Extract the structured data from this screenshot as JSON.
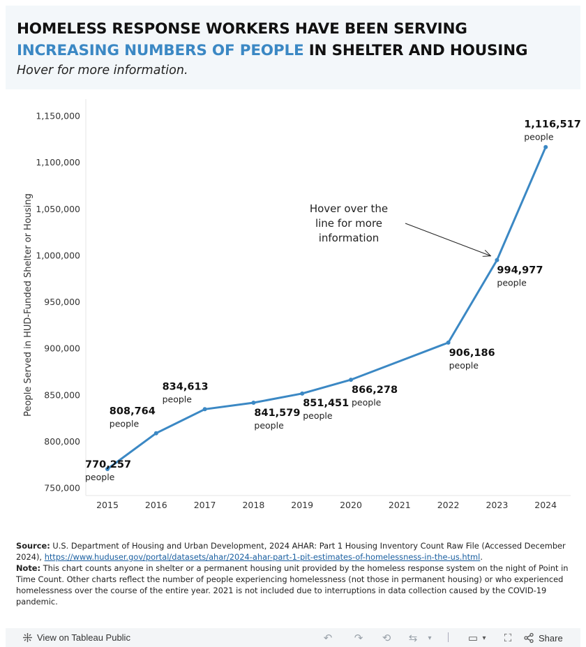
{
  "header": {
    "title_line1": "HOMELESS RESPONSE WORKERS HAVE BEEN SERVING",
    "title_accent": "INCREASING NUMBERS OF PEOPLE",
    "title_line2_rest": " IN SHELTER AND HOUSING",
    "subtitle": "Hover for more information."
  },
  "colors": {
    "accent": "#3b88c4",
    "line": "#3b88c4",
    "header_bg": "#f3f7fa"
  },
  "chart_data": {
    "type": "line",
    "title": "HOMELESS RESPONSE WORKERS HAVE BEEN SERVING INCREASING NUMBERS OF PEOPLE IN SHELTER AND HOUSING",
    "xlabel": "",
    "ylabel": "People Served in HUD-Funded Shelter or Housing",
    "categories": [
      "2015",
      "2016",
      "2017",
      "2018",
      "2019",
      "2020",
      "2021",
      "2022",
      "2023",
      "2024"
    ],
    "series": [
      {
        "name": "People served",
        "x": [
          "2015",
          "2016",
          "2017",
          "2018",
          "2019",
          "2020",
          "2022",
          "2023",
          "2024"
        ],
        "values": [
          770257,
          808764,
          834613,
          841579,
          851451,
          866278,
          906186,
          994977,
          1116517
        ],
        "labels": [
          "770,257",
          "808,764",
          "834,613",
          "841,579",
          "851,451",
          "866,278",
          "906,186",
          "994,977",
          "1,116,517"
        ]
      }
    ],
    "point_unit": "people",
    "ylim": [
      750000,
      1160000
    ],
    "yticks": [
      750000,
      800000,
      850000,
      900000,
      950000,
      1000000,
      1050000,
      1100000,
      1150000
    ],
    "ytick_labels": [
      "750,000",
      "800,000",
      "850,000",
      "900,000",
      "950,000",
      "1,000,000",
      "1,050,000",
      "1,100,000",
      "1,150,000"
    ],
    "annotation": {
      "lines": [
        "Hover over the",
        "line for more",
        "information"
      ],
      "points_to": "2023"
    },
    "grid": false
  },
  "notes": {
    "source_label": "Source:",
    "source_text": " U.S. Department of Housing and Urban Development, 2024 AHAR: Part 1 Housing Inventory Count Raw File (Accessed December 2024), ",
    "source_link": "https://www.huduser.gov/portal/datasets/ahar/2024-ahar-part-1-pit-estimates-of-homelessness-in-the-us.html",
    "source_end": ".",
    "note_label": "Note:",
    "note_text": " This chart counts anyone in shelter or a permanent housing unit provided by the homeless response system on the night of Point in Time Count. Other charts reflect the number of people experiencing homelessness (not those in permanent housing) or who experienced homelessness over the course of the entire year. 2021 is not included due to interruptions in data collection caused by the COVID-19 pandemic."
  },
  "footer": {
    "view_label": "View on Tableau Public",
    "share_label": "Share",
    "icons": [
      "tableau-icon",
      "undo-icon",
      "redo-icon",
      "revert-icon",
      "refresh-icon",
      "pause-icon",
      "download-icon",
      "fullscreen-icon",
      "share-icon"
    ]
  }
}
